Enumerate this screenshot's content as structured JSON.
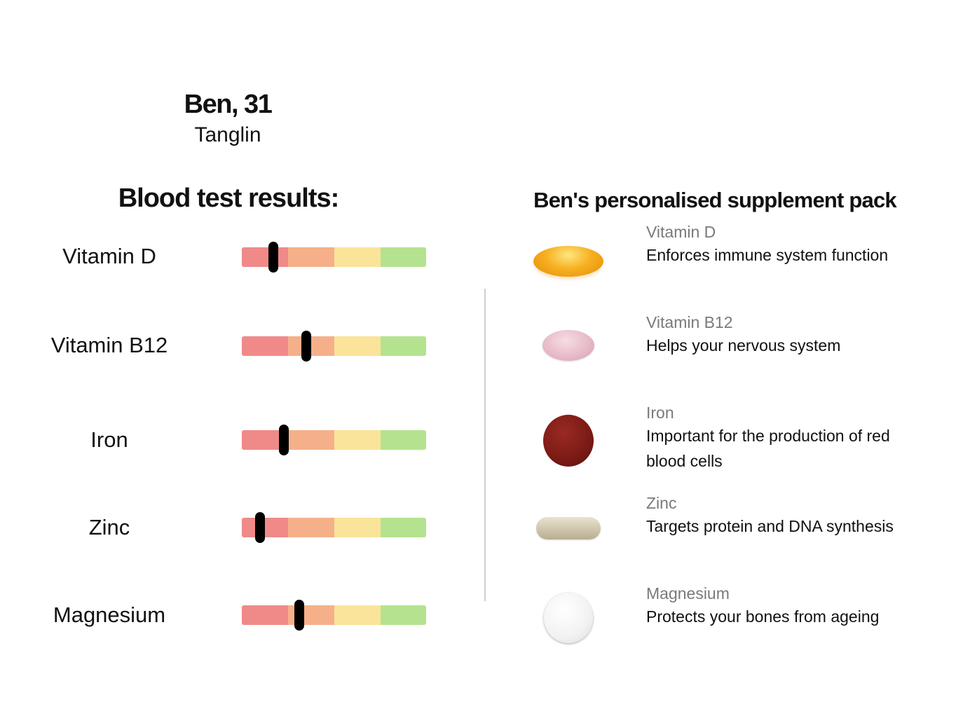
{
  "profile": {
    "name": "Ben, 31",
    "location": "Tanglin"
  },
  "results": {
    "title": "Blood test results:",
    "scale_colors": [
      "#f08a88",
      "#f5b08a",
      "#fae49a",
      "#b5e28f"
    ],
    "items": [
      {
        "label": "Vitamin D",
        "level": 0.17
      },
      {
        "label": "Vitamin B12",
        "level": 0.35
      },
      {
        "label": "Iron",
        "level": 0.23
      },
      {
        "label": "Zinc",
        "level": 0.1
      },
      {
        "label": "Magnesium",
        "level": 0.31
      }
    ]
  },
  "pack": {
    "title": "Ben's personalised supplement pack",
    "items": [
      {
        "name": "Vitamin D",
        "description": "Enforces immune system function",
        "icon": "softgel-capsule-icon"
      },
      {
        "name": "Vitamin B12",
        "description": "Helps your nervous system",
        "icon": "oval-tablet-icon"
      },
      {
        "name": "Iron",
        "description": "Important for the production of red blood cells",
        "icon": "round-tablet-icon"
      },
      {
        "name": "Zinc",
        "description": "Targets protein and DNA synthesis",
        "icon": "capsule-icon"
      },
      {
        "name": "Magnesium",
        "description": "Protects your bones from ageing",
        "icon": "white-tablet-icon"
      }
    ]
  }
}
